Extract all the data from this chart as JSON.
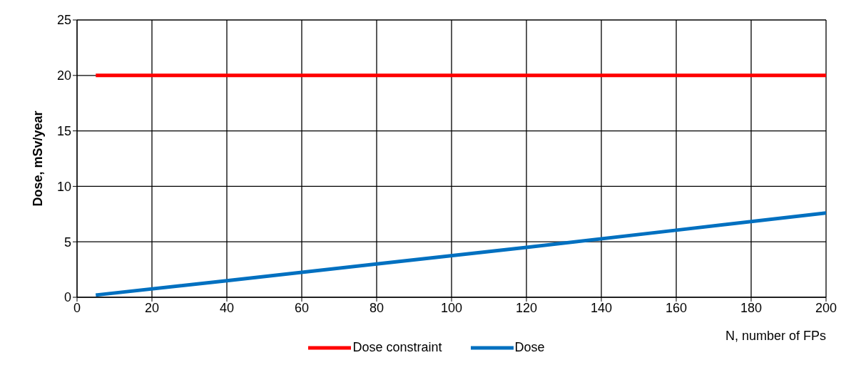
{
  "chart_data": {
    "type": "line",
    "xlabel": "N, number of FPs",
    "ylabel": "Dose, mSv/year",
    "xlim": [
      0,
      200
    ],
    "xticks": [
      0,
      20,
      40,
      60,
      80,
      100,
      120,
      140,
      160,
      180,
      200
    ],
    "ylim": [
      0,
      25
    ],
    "yticks": [
      0,
      5,
      10,
      15,
      20,
      25
    ],
    "grid": true,
    "legend": "bottom",
    "marker": "none",
    "line_style": "solid",
    "series": [
      {
        "name": "Dose constraint",
        "color": "#ff0000",
        "x": [
          5,
          200
        ],
        "values": [
          20,
          20
        ]
      },
      {
        "name": "Dose",
        "color": "#0070c0",
        "x": [
          5,
          40,
          80,
          120,
          160,
          200
        ],
        "values": [
          0.2,
          1.5,
          3.0,
          4.5,
          6.05,
          7.6
        ]
      }
    ]
  }
}
